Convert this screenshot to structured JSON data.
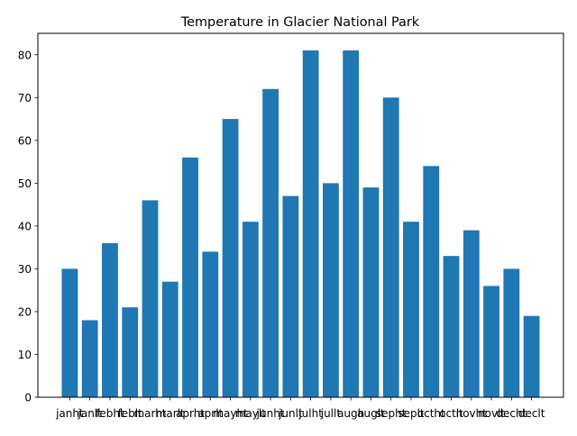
{
  "chart_data": {
    "type": "bar",
    "title": "Temperature in Glacier National Park",
    "xlabel": "",
    "ylabel": "",
    "categories": [
      "janht",
      "janlt",
      "febht",
      "feblt",
      "marht",
      "marlt",
      "aprht",
      "aprlt",
      "mayht",
      "maylt",
      "junht",
      "junlt",
      "julht",
      "jullt",
      "augh",
      "auglt",
      "sepht",
      "seplt",
      "octht",
      "octlt",
      "novht",
      "novlt",
      "decht",
      "declt"
    ],
    "tick_labels_shown": [
      "janht",
      "janlt",
      "febht",
      "feblt",
      "marht",
      "marlt",
      "aprht",
      "aprlt",
      "mayht",
      "maylt",
      "junht",
      "junlt",
      "julht",
      "jullt",
      "augh",
      "auglt",
      "sepht",
      "seplt",
      "octht",
      "octlt",
      "novht",
      "novlt",
      "decht",
      "declt"
    ],
    "values": [
      30,
      18,
      36,
      21,
      46,
      27,
      56,
      34,
      65,
      41,
      72,
      47,
      81,
      50,
      81,
      49,
      70,
      41,
      54,
      33,
      39,
      26,
      30,
      19
    ],
    "ylim": [
      0,
      85
    ],
    "yticks": [
      0,
      10,
      20,
      30,
      40,
      50,
      60,
      70,
      80
    ],
    "grid": false,
    "bar_color": "#1f77b4"
  }
}
